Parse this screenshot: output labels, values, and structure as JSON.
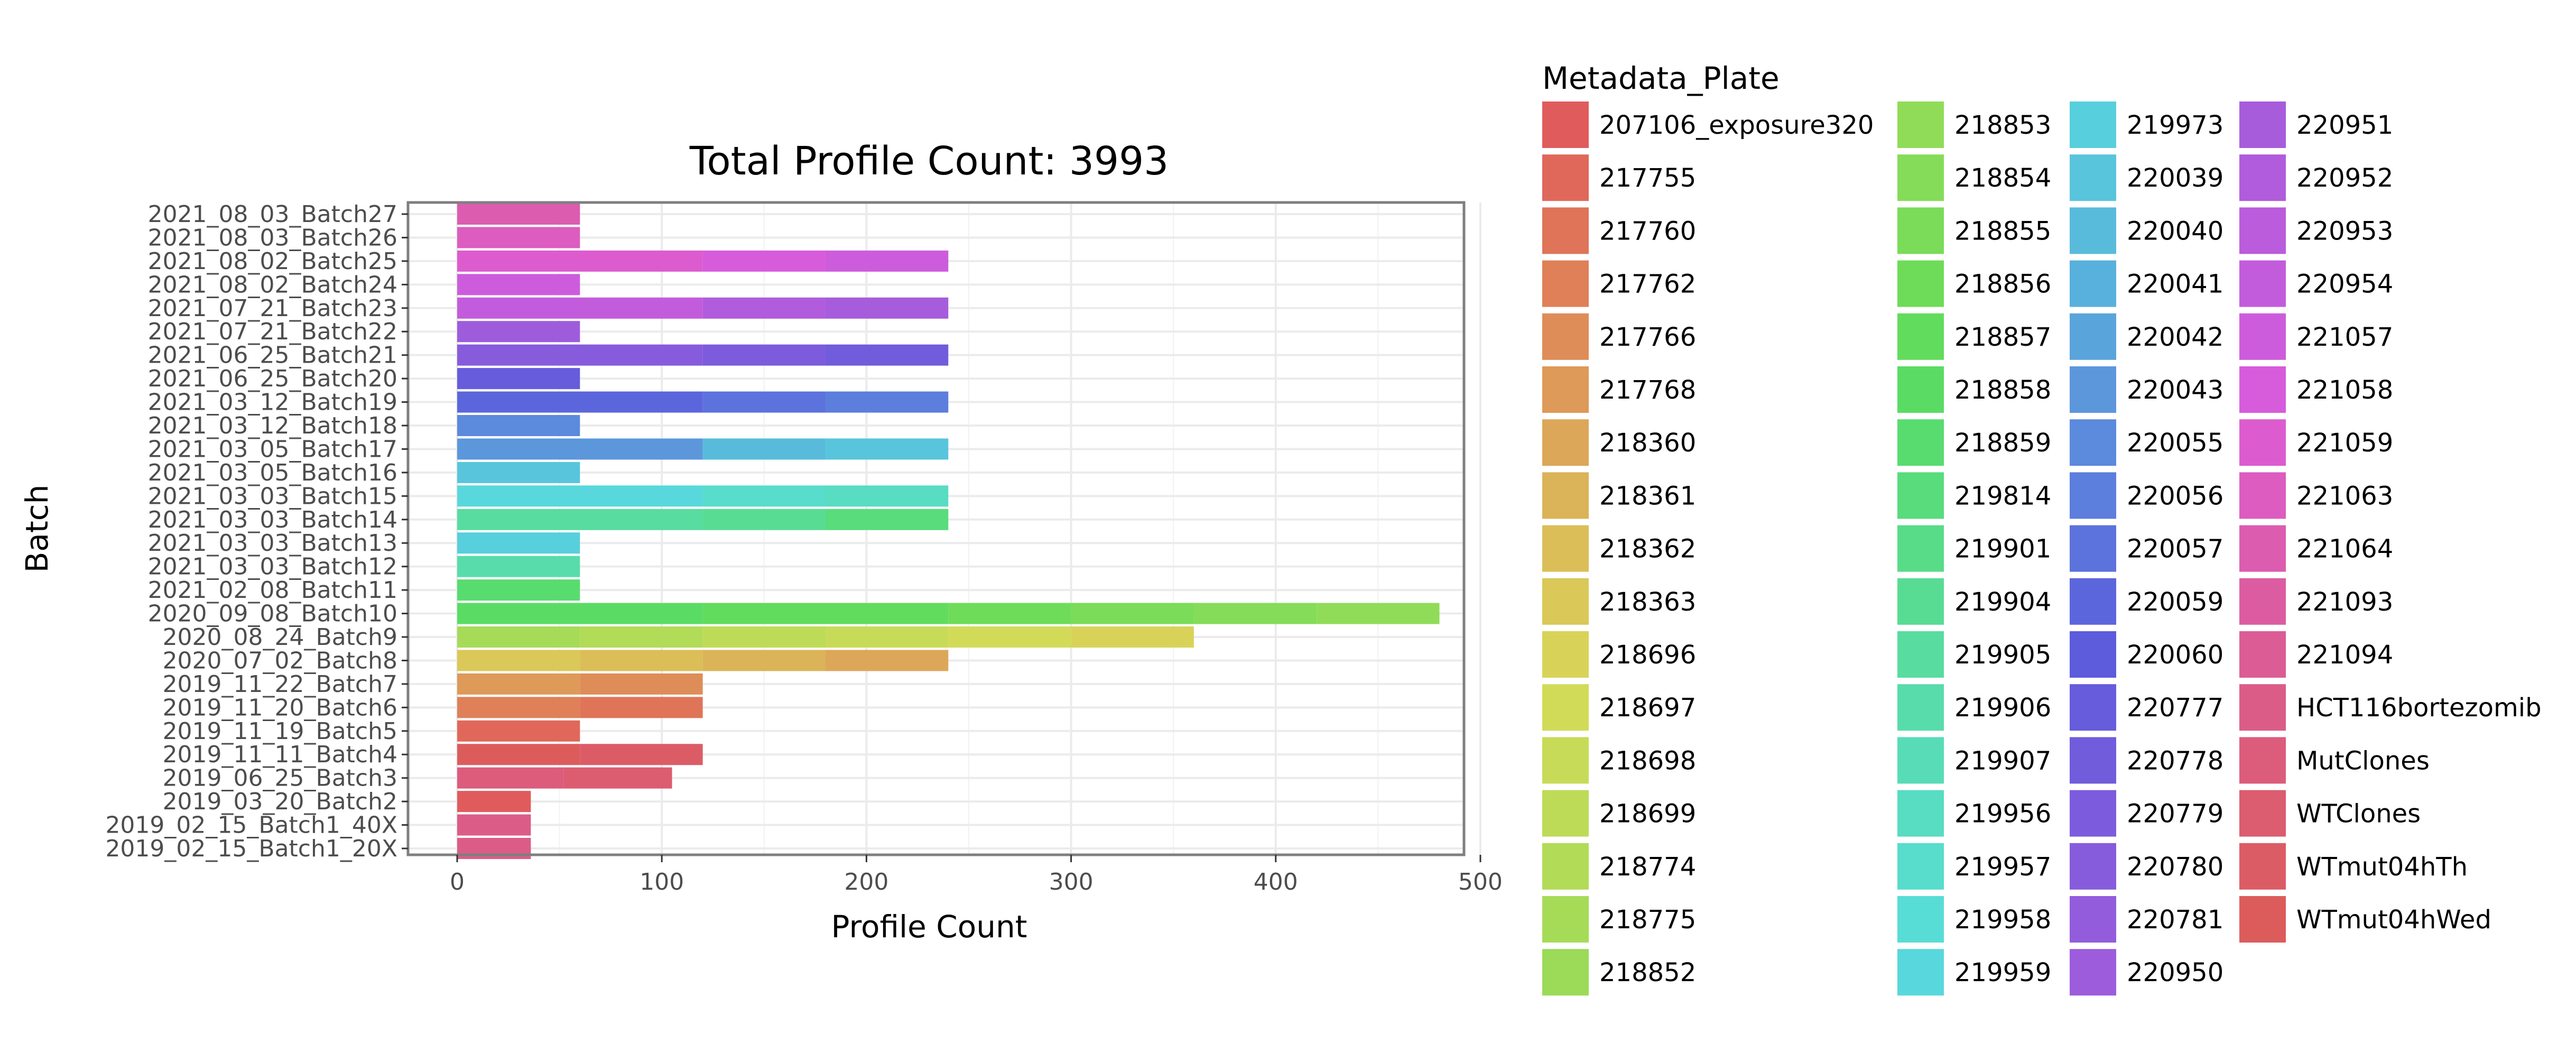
{
  "chart_data": {
    "type": "bar",
    "orientation": "horizontal",
    "stacked": true,
    "title": "Total Profile Count: 3993",
    "xlabel": "Profile Count",
    "ylabel": "Batch",
    "xlim": [
      0,
      500
    ],
    "xticks": [
      0,
      100,
      200,
      300,
      400,
      500
    ],
    "grid": true,
    "legend": {
      "title": "Metadata_Plate",
      "position": "right",
      "columns": 4
    },
    "legend_items": [
      {
        "name": "207106_exposure320",
        "color": "#E05C5C"
      },
      {
        "name": "217755",
        "color": "#E0685A"
      },
      {
        "name": "217760",
        "color": "#DF7458"
      },
      {
        "name": "217762",
        "color": "#DF8058"
      },
      {
        "name": "217766",
        "color": "#DE8D58"
      },
      {
        "name": "217768",
        "color": "#DD9A58"
      },
      {
        "name": "218360",
        "color": "#DCA758"
      },
      {
        "name": "218361",
        "color": "#DBB358"
      },
      {
        "name": "218362",
        "color": "#DBBE58"
      },
      {
        "name": "218363",
        "color": "#DAC858"
      },
      {
        "name": "218696",
        "color": "#D8D358"
      },
      {
        "name": "218697",
        "color": "#D2DB58"
      },
      {
        "name": "218698",
        "color": "#C8DB58"
      },
      {
        "name": "218699",
        "color": "#BEDB58"
      },
      {
        "name": "218774",
        "color": "#B2DB58"
      },
      {
        "name": "218775",
        "color": "#A6DB58"
      },
      {
        "name": "218852",
        "color": "#9BDB58"
      },
      {
        "name": "218853",
        "color": "#90DC58"
      },
      {
        "name": "218854",
        "color": "#85DC58"
      },
      {
        "name": "218855",
        "color": "#7ADC58"
      },
      {
        "name": "218856",
        "color": "#6EDC58"
      },
      {
        "name": "218857",
        "color": "#62DC5C"
      },
      {
        "name": "218858",
        "color": "#5ADC64"
      },
      {
        "name": "218859",
        "color": "#58DC70"
      },
      {
        "name": "219814",
        "color": "#58DC7C"
      },
      {
        "name": "219901",
        "color": "#58DC88"
      },
      {
        "name": "219904",
        "color": "#58DC94"
      },
      {
        "name": "219905",
        "color": "#58DCA0"
      },
      {
        "name": "219906",
        "color": "#58DCAC"
      },
      {
        "name": "219907",
        "color": "#58DCB8"
      },
      {
        "name": "219956",
        "color": "#58DCC2"
      },
      {
        "name": "219957",
        "color": "#58DCCC"
      },
      {
        "name": "219958",
        "color": "#58DCD6"
      },
      {
        "name": "219959",
        "color": "#58D8DC"
      },
      {
        "name": "219973",
        "color": "#58CFDC"
      },
      {
        "name": "220039",
        "color": "#58C5DC"
      },
      {
        "name": "220040",
        "color": "#58BBDC"
      },
      {
        "name": "220041",
        "color": "#58B0DC"
      },
      {
        "name": "220042",
        "color": "#5AA4DC"
      },
      {
        "name": "220043",
        "color": "#5C97DC"
      },
      {
        "name": "220055",
        "color": "#5C8ADC"
      },
      {
        "name": "220056",
        "color": "#5C7EDC"
      },
      {
        "name": "220057",
        "color": "#5C72DC"
      },
      {
        "name": "220059",
        "color": "#5C66DC"
      },
      {
        "name": "220060",
        "color": "#5C5CDC"
      },
      {
        "name": "220777",
        "color": "#665CDC"
      },
      {
        "name": "220778",
        "color": "#715CDC"
      },
      {
        "name": "220779",
        "color": "#7C5CDC"
      },
      {
        "name": "220780",
        "color": "#875CDC"
      },
      {
        "name": "220781",
        "color": "#925CDC"
      },
      {
        "name": "220950",
        "color": "#9D5CDC"
      },
      {
        "name": "220951",
        "color": "#A75CDC"
      },
      {
        "name": "220952",
        "color": "#B05CDC"
      },
      {
        "name": "220953",
        "color": "#BA5CDC"
      },
      {
        "name": "220954",
        "color": "#C35CDC"
      },
      {
        "name": "221057",
        "color": "#CD5CDC"
      },
      {
        "name": "221058",
        "color": "#D65CDC"
      },
      {
        "name": "221059",
        "color": "#DC5CCF"
      },
      {
        "name": "221063",
        "color": "#DC5CC0"
      },
      {
        "name": "221064",
        "color": "#DC5CB0"
      },
      {
        "name": "221093",
        "color": "#DC5CA2"
      },
      {
        "name": "221094",
        "color": "#DC5C95"
      },
      {
        "name": "HCT116bortezomib",
        "color": "#DC5C88"
      },
      {
        "name": "MutClones",
        "color": "#DC5C7C"
      },
      {
        "name": "WTClones",
        "color": "#DC5C70"
      },
      {
        "name": "WTmut04hTh",
        "color": "#DC5C66"
      },
      {
        "name": "WTmut04hWed",
        "color": "#DC5C5C"
      }
    ],
    "categories": [
      "2021_08_03_Batch27",
      "2021_08_03_Batch26",
      "2021_08_02_Batch25",
      "2021_08_02_Batch24",
      "2021_07_21_Batch23",
      "2021_07_21_Batch22",
      "2021_06_25_Batch21",
      "2021_06_25_Batch20",
      "2021_03_12_Batch19",
      "2021_03_12_Batch18",
      "2021_03_05_Batch17",
      "2021_03_05_Batch16",
      "2021_03_03_Batch15",
      "2021_03_03_Batch14",
      "2021_03_03_Batch13",
      "2021_03_03_Batch12",
      "2021_02_08_Batch11",
      "2020_09_08_Batch10",
      "2020_08_24_Batch9",
      "2020_07_02_Batch8",
      "2019_11_22_Batch7",
      "2019_11_20_Batch6",
      "2019_11_19_Batch5",
      "2019_11_11_Batch4",
      "2019_06_25_Batch3",
      "2019_03_20_Batch2",
      "2019_02_15_Batch1_40X",
      "2019_02_15_Batch1_20X"
    ],
    "bars": [
      {
        "batch": "2021_08_03_Batch27",
        "segments": [
          {
            "plate": "221064",
            "value": 60
          }
        ]
      },
      {
        "batch": "2021_08_03_Batch26",
        "segments": [
          {
            "plate": "221063",
            "value": 60
          }
        ]
      },
      {
        "batch": "2021_08_02_Batch25",
        "segments": [
          {
            "plate": "221059",
            "value": 120
          },
          {
            "plate": "221058",
            "value": 60
          },
          {
            "plate": "221057",
            "value": 60
          }
        ]
      },
      {
        "batch": "2021_08_02_Batch24",
        "segments": [
          {
            "plate": "221057",
            "value": 60
          }
        ]
      },
      {
        "batch": "2021_07_21_Batch23",
        "segments": [
          {
            "plate": "220954",
            "value": 120
          },
          {
            "plate": "220952",
            "value": 60
          },
          {
            "plate": "220951",
            "value": 60
          }
        ]
      },
      {
        "batch": "2021_07_21_Batch22",
        "segments": [
          {
            "plate": "220950",
            "value": 60
          }
        ]
      },
      {
        "batch": "2021_06_25_Batch21",
        "segments": [
          {
            "plate": "220780",
            "value": 120
          },
          {
            "plate": "220779",
            "value": 60
          },
          {
            "plate": "220778",
            "value": 60
          }
        ]
      },
      {
        "batch": "2021_06_25_Batch20",
        "segments": [
          {
            "plate": "220777",
            "value": 60
          }
        ]
      },
      {
        "batch": "2021_03_12_Batch19",
        "segments": [
          {
            "plate": "220059",
            "value": 120
          },
          {
            "plate": "220057",
            "value": 60
          },
          {
            "plate": "220056",
            "value": 60
          }
        ]
      },
      {
        "batch": "2021_03_12_Batch18",
        "segments": [
          {
            "plate": "220055",
            "value": 60
          }
        ]
      },
      {
        "batch": "2021_03_05_Batch17",
        "segments": [
          {
            "plate": "220043",
            "value": 120
          },
          {
            "plate": "220040",
            "value": 60
          },
          {
            "plate": "220039",
            "value": 60
          }
        ]
      },
      {
        "batch": "2021_03_05_Batch16",
        "segments": [
          {
            "plate": "220039",
            "value": 60
          }
        ]
      },
      {
        "batch": "2021_03_03_Batch15",
        "segments": [
          {
            "plate": "219959",
            "value": 120
          },
          {
            "plate": "219957",
            "value": 60
          },
          {
            "plate": "219956",
            "value": 60
          }
        ]
      },
      {
        "batch": "2021_03_03_Batch14",
        "segments": [
          {
            "plate": "219905",
            "value": 120
          },
          {
            "plate": "219904",
            "value": 60
          },
          {
            "plate": "219814",
            "value": 60
          }
        ]
      },
      {
        "batch": "2021_03_03_Batch13",
        "segments": [
          {
            "plate": "219973",
            "value": 60
          }
        ]
      },
      {
        "batch": "2021_03_03_Batch12",
        "segments": [
          {
            "plate": "219906",
            "value": 60
          }
        ]
      },
      {
        "batch": "2021_02_08_Batch11",
        "segments": [
          {
            "plate": "218859",
            "value": 60
          }
        ]
      },
      {
        "batch": "2020_09_08_Batch10",
        "segments": [
          {
            "plate": "218858",
            "value": 120
          },
          {
            "plate": "218857",
            "value": 120
          },
          {
            "plate": "218856",
            "value": 60
          },
          {
            "plate": "218855",
            "value": 60
          },
          {
            "plate": "218854",
            "value": 60
          },
          {
            "plate": "218853",
            "value": 60
          }
        ]
      },
      {
        "batch": "2020_08_24_Batch9",
        "segments": [
          {
            "plate": "218775",
            "value": 60
          },
          {
            "plate": "218774",
            "value": 60
          },
          {
            "plate": "218699",
            "value": 60
          },
          {
            "plate": "218698",
            "value": 60
          },
          {
            "plate": "218697",
            "value": 60
          },
          {
            "plate": "218696",
            "value": 60
          }
        ]
      },
      {
        "batch": "2020_07_02_Batch8",
        "segments": [
          {
            "plate": "218363",
            "value": 60
          },
          {
            "plate": "218362",
            "value": 60
          },
          {
            "plate": "218361",
            "value": 60
          },
          {
            "plate": "218360",
            "value": 60
          }
        ]
      },
      {
        "batch": "2019_11_22_Batch7",
        "segments": [
          {
            "plate": "217768",
            "value": 60
          },
          {
            "plate": "217766",
            "value": 60
          }
        ]
      },
      {
        "batch": "2019_11_20_Batch6",
        "segments": [
          {
            "plate": "217762",
            "value": 60
          },
          {
            "plate": "217760",
            "value": 60
          }
        ]
      },
      {
        "batch": "2019_11_19_Batch5",
        "segments": [
          {
            "plate": "217755",
            "value": 60
          }
        ]
      },
      {
        "batch": "2019_11_11_Batch4",
        "segments": [
          {
            "plate": "WTmut04hWed",
            "value": 60
          },
          {
            "plate": "WTmut04hTh",
            "value": 60
          }
        ]
      },
      {
        "batch": "2019_06_25_Batch3",
        "segments": [
          {
            "plate": "MutClones",
            "value": 52
          },
          {
            "plate": "WTClones",
            "value": 53
          }
        ]
      },
      {
        "batch": "2019_03_20_Batch2",
        "segments": [
          {
            "plate": "207106_exposure320",
            "value": 36
          }
        ]
      },
      {
        "batch": "2019_02_15_Batch1_40X",
        "segments": [
          {
            "plate": "HCT116bortezomib",
            "value": 36
          }
        ]
      },
      {
        "batch": "2019_02_15_Batch1_20X",
        "segments": [
          {
            "plate": "HCT116bortezomib",
            "value": 36
          }
        ]
      }
    ]
  }
}
